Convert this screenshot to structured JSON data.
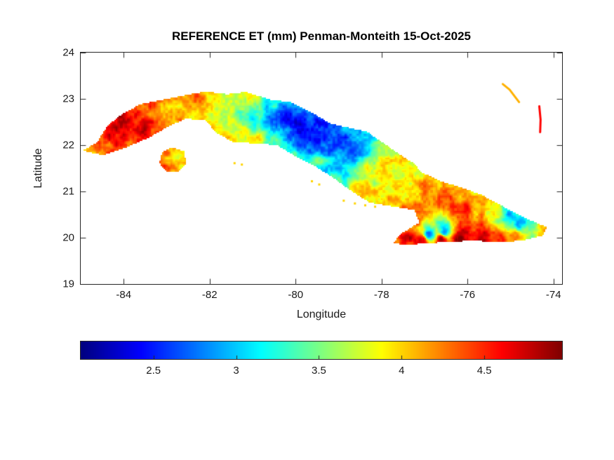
{
  "chart_data": {
    "type": "heatmap",
    "title": "REFERENCE ET (mm) Penman-Monteith 15-Oct-2025",
    "xlabel": "Longitude",
    "ylabel": "Latitude",
    "region": "Cuba",
    "units": "mm",
    "xlim": [
      -85.0,
      -73.8
    ],
    "ylim": [
      19,
      24
    ],
    "xticks": [
      -84,
      -82,
      -80,
      -78,
      -76,
      -74
    ],
    "yticks": [
      19,
      20,
      21,
      22,
      23,
      24
    ],
    "colormap": "jet",
    "grid": false,
    "colorbar": {
      "orientation": "horizontal",
      "position": "below",
      "limits": [
        2.06,
        4.97
      ],
      "ticks": [
        2.5,
        3,
        3.5,
        4,
        4.5
      ]
    },
    "colors": {
      "axis": "#262626",
      "background": "#ffffff",
      "title_text": "#000000"
    },
    "samples_format": [
      "lon",
      "lat",
      "et_mm"
    ],
    "samples": [
      [
        -84.85,
        21.9,
        3.9
      ],
      [
        -84.55,
        22.05,
        4.3
      ],
      [
        -84.3,
        22.35,
        4.7
      ],
      [
        -83.95,
        22.55,
        4.8
      ],
      [
        -83.6,
        22.35,
        4.7
      ],
      [
        -83.55,
        22.85,
        4.4
      ],
      [
        -83.3,
        22.1,
        4.5
      ],
      [
        -83.1,
        22.6,
        4.2
      ],
      [
        -82.75,
        22.85,
        4.1
      ],
      [
        -82.25,
        23.05,
        4.2
      ],
      [
        -82.3,
        22.7,
        3.9
      ],
      [
        -81.9,
        23.0,
        3.9
      ],
      [
        -81.8,
        22.5,
        3.7
      ],
      [
        -81.35,
        22.9,
        3.5
      ],
      [
        -81.1,
        23.05,
        4.0
      ],
      [
        -81.3,
        22.25,
        3.8
      ],
      [
        -80.9,
        22.1,
        3.9
      ],
      [
        -81.0,
        22.65,
        3.2
      ],
      [
        -80.65,
        22.85,
        3.1
      ],
      [
        -80.6,
        22.5,
        2.7
      ],
      [
        -80.25,
        22.55,
        2.5
      ],
      [
        -79.9,
        22.35,
        2.35
      ],
      [
        -79.55,
        22.1,
        2.45
      ],
      [
        -79.9,
        21.95,
        2.7
      ],
      [
        -79.3,
        22.35,
        2.5
      ],
      [
        -79.0,
        22.05,
        2.6
      ],
      [
        -78.65,
        21.85,
        2.8
      ],
      [
        -78.95,
        21.6,
        3.0
      ],
      [
        -80.1,
        21.82,
        3.3
      ],
      [
        -79.55,
        21.65,
        3.4
      ],
      [
        -80.5,
        22.0,
        3.5
      ],
      [
        -81.55,
        22.15,
        3.9
      ],
      [
        -82.0,
        22.4,
        4.0
      ],
      [
        -78.3,
        21.3,
        3.8
      ],
      [
        -77.85,
        21.45,
        3.9
      ],
      [
        -77.95,
        20.95,
        4.0
      ],
      [
        -77.45,
        21.1,
        4.0
      ],
      [
        -78.45,
        20.95,
        4.1
      ],
      [
        -77.2,
        21.5,
        3.8
      ],
      [
        -76.9,
        21.0,
        4.2
      ],
      [
        -76.45,
        20.85,
        4.4
      ],
      [
        -76.05,
        20.7,
        4.4
      ],
      [
        -76.3,
        21.05,
        4.1
      ],
      [
        -75.8,
        20.85,
        4.0
      ],
      [
        -75.35,
        20.65,
        3.8
      ],
      [
        -75.05,
        20.45,
        3.0
      ],
      [
        -74.8,
        20.32,
        2.9
      ],
      [
        -74.55,
        20.32,
        3.3
      ],
      [
        -74.25,
        20.18,
        3.9
      ],
      [
        -77.4,
        20.05,
        4.6
      ],
      [
        -77.05,
        19.95,
        4.8
      ],
      [
        -76.6,
        19.98,
        4.8
      ],
      [
        -76.15,
        19.95,
        4.9
      ],
      [
        -75.7,
        20.02,
        4.8
      ],
      [
        -75.3,
        20.0,
        4.5
      ],
      [
        -74.9,
        20.05,
        4.2
      ],
      [
        -76.9,
        20.08,
        2.7
      ],
      [
        -76.55,
        20.12,
        2.9
      ],
      [
        -77.3,
        20.5,
        4.4
      ],
      [
        -77.6,
        20.3,
        4.5
      ],
      [
        -83.0,
        21.8,
        4.1
      ],
      [
        -82.7,
        21.75,
        3.8
      ],
      [
        -82.85,
        21.55,
        4.2
      ],
      [
        -83.1,
        21.65,
        4.4
      ]
    ],
    "outlines": {
      "cuba": [
        [
          -84.95,
          21.88
        ],
        [
          -84.62,
          22.06
        ],
        [
          -84.38,
          22.42
        ],
        [
          -84.05,
          22.66
        ],
        [
          -83.62,
          22.88
        ],
        [
          -83.15,
          22.97
        ],
        [
          -82.62,
          23.07
        ],
        [
          -82.1,
          23.16
        ],
        [
          -81.6,
          23.1
        ],
        [
          -81.15,
          23.15
        ],
        [
          -80.62,
          22.99
        ],
        [
          -80.08,
          22.92
        ],
        [
          -79.58,
          22.68
        ],
        [
          -79.22,
          22.48
        ],
        [
          -78.83,
          22.39
        ],
        [
          -78.34,
          22.29
        ],
        [
          -77.93,
          22.03
        ],
        [
          -77.55,
          21.78
        ],
        [
          -77.24,
          21.6
        ],
        [
          -77.08,
          21.42
        ],
        [
          -76.62,
          21.22
        ],
        [
          -76.12,
          21.08
        ],
        [
          -75.68,
          20.93
        ],
        [
          -75.22,
          20.7
        ],
        [
          -74.78,
          20.48
        ],
        [
          -74.42,
          20.33
        ],
        [
          -74.14,
          20.22
        ],
        [
          -74.26,
          20.04
        ],
        [
          -74.72,
          19.94
        ],
        [
          -75.22,
          19.9
        ],
        [
          -75.78,
          19.93
        ],
        [
          -76.38,
          19.92
        ],
        [
          -77.02,
          19.87
        ],
        [
          -77.48,
          19.85
        ],
        [
          -77.73,
          19.88
        ],
        [
          -77.56,
          20.08
        ],
        [
          -77.12,
          20.33
        ],
        [
          -77.24,
          20.6
        ],
        [
          -77.78,
          20.68
        ],
        [
          -78.28,
          20.76
        ],
        [
          -78.72,
          21.02
        ],
        [
          -79.16,
          21.32
        ],
        [
          -79.58,
          21.56
        ],
        [
          -80.0,
          21.76
        ],
        [
          -80.44,
          22.0
        ],
        [
          -80.95,
          22.04
        ],
        [
          -81.45,
          22.06
        ],
        [
          -81.86,
          22.28
        ],
        [
          -82.1,
          22.54
        ],
        [
          -82.56,
          22.57
        ],
        [
          -82.96,
          22.4
        ],
        [
          -83.42,
          22.16
        ],
        [
          -83.92,
          21.96
        ],
        [
          -84.48,
          21.78
        ]
      ],
      "isla_de_la_juventud": [
        [
          -83.17,
          21.61
        ],
        [
          -83.11,
          21.84
        ],
        [
          -82.88,
          21.96
        ],
        [
          -82.6,
          21.87
        ],
        [
          -82.54,
          21.62
        ],
        [
          -82.7,
          21.44
        ],
        [
          -82.99,
          21.41
        ]
      ],
      "small_islands": [
        {
          "name": "long-island-bahamas",
          "type": "line",
          "et": 4.1,
          "points": [
            [
              -75.18,
              23.32
            ],
            [
              -75.02,
              23.2
            ],
            [
              -74.9,
              23.05
            ],
            [
              -74.8,
              22.93
            ]
          ]
        },
        {
          "name": "crooked-acklins",
          "type": "line",
          "et": 4.6,
          "points": [
            [
              -74.33,
              22.84
            ],
            [
              -74.3,
              22.55
            ],
            [
              -74.31,
              22.28
            ]
          ]
        },
        {
          "name": "jardines-de-la-reina",
          "type": "dots",
          "et": 4.0,
          "points": [
            [
              -78.88,
              20.8
            ],
            [
              -78.62,
              20.74
            ],
            [
              -78.38,
              20.7
            ],
            [
              -78.15,
              20.67
            ],
            [
              -79.45,
              21.15
            ],
            [
              -79.62,
              21.22
            ]
          ]
        },
        {
          "name": "cayo-largo",
          "type": "dots",
          "et": 4.0,
          "points": [
            [
              -81.42,
              21.61
            ],
            [
              -81.25,
              21.58
            ]
          ]
        }
      ]
    }
  }
}
